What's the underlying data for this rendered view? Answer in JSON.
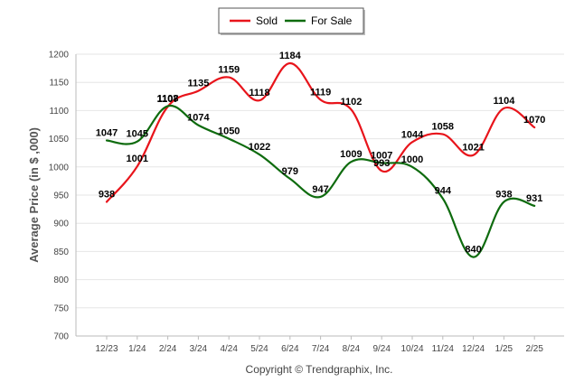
{
  "chart_data": {
    "type": "line",
    "categories": [
      "12/23",
      "1/24",
      "2/24",
      "3/24",
      "4/24",
      "5/24",
      "6/24",
      "7/24",
      "8/24",
      "9/24",
      "10/24",
      "11/24",
      "12/24",
      "1/25",
      "2/25"
    ],
    "series": [
      {
        "name": "Sold",
        "color": "#e8141b",
        "values": [
          938,
          1001,
          1107,
          1135,
          1159,
          1118,
          1184,
          1119,
          1102,
          993,
          1044,
          1058,
          1021,
          1104,
          1070
        ]
      },
      {
        "name": "For Sale",
        "color": "#0e6b0e",
        "values": [
          1047,
          1045,
          1108,
          1074,
          1050,
          1022,
          979,
          947,
          1009,
          1007,
          1000,
          944,
          840,
          938,
          931
        ]
      }
    ],
    "ylabel": "Average Price (in $ ,000)",
    "xlabel": "",
    "ylim": [
      700,
      1200
    ],
    "yticks": [
      700,
      750,
      800,
      850,
      900,
      950,
      1000,
      1050,
      1100,
      1150,
      1200
    ],
    "grid": true,
    "legend_position": "top-center"
  },
  "footer": {
    "copyright": "Copyright © Trendgraphix, Inc."
  }
}
